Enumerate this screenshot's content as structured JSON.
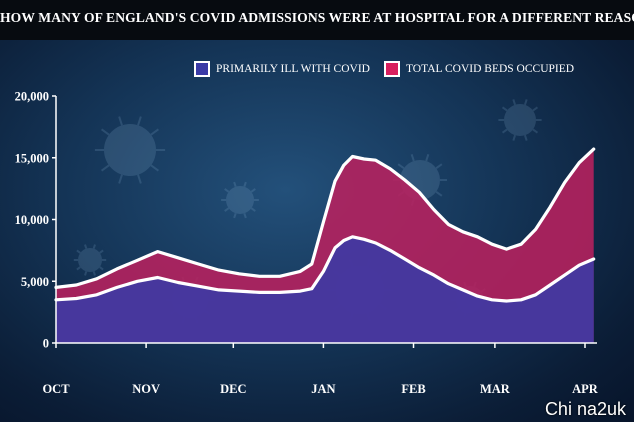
{
  "title": "HOW MANY OF ENGLAND'S COVID ADMISSIONS WERE AT HOSPITAL FOR A DIFFERENT REASON?",
  "watermark": "Chi na2uk",
  "colors": {
    "background": "#143456",
    "title_bar": "#070b10",
    "primarily_ill_fill": "#3a3aa6",
    "total_fill": "#b8215e",
    "line": "#ffffff",
    "text": "#ffffff"
  },
  "legend": [
    {
      "label": "PRIMARILY ILL WITH COVID",
      "color": "#3a3aa6"
    },
    {
      "label": "TOTAL COVID BEDS OCCUPIED",
      "color": "#d81f5e"
    }
  ],
  "chart_data": {
    "type": "area",
    "title": "HOW MANY OF ENGLAND'S COVID ADMISSIONS WERE AT HOSPITAL FOR A DIFFERENT REASON?",
    "xlabel": "",
    "ylabel": "",
    "ylim": [
      0,
      20000
    ],
    "yticks": [
      "20,000",
      "15,000",
      "10,000",
      "5,000",
      "0"
    ],
    "yticks_values": [
      20000,
      15000,
      10000,
      5000,
      0
    ],
    "xticks": [
      "OCT",
      "NOV",
      "DEC",
      "JAN",
      "FEB",
      "MAR",
      "APR"
    ],
    "legend_position": "top-right",
    "grid": false,
    "x": [
      "2021-10-01",
      "2021-10-08",
      "2021-10-15",
      "2021-10-22",
      "2021-10-29",
      "2021-11-05",
      "2021-11-12",
      "2021-11-19",
      "2021-11-26",
      "2021-12-03",
      "2021-12-10",
      "2021-12-17",
      "2021-12-24",
      "2021-12-28",
      "2022-01-01",
      "2022-01-05",
      "2022-01-08",
      "2022-01-11",
      "2022-01-15",
      "2022-01-19",
      "2022-01-24",
      "2022-01-29",
      "2022-02-03",
      "2022-02-08",
      "2022-02-13",
      "2022-02-18",
      "2022-02-23",
      "2022-02-28",
      "2022-03-05",
      "2022-03-10",
      "2022-03-15",
      "2022-03-20",
      "2022-03-25",
      "2022-03-30",
      "2022-04-04"
    ],
    "series": [
      {
        "name": "TOTAL COVID BEDS OCCUPIED",
        "values": [
          4500,
          4700,
          5200,
          6000,
          6700,
          7400,
          6900,
          6400,
          5900,
          5600,
          5400,
          5400,
          5800,
          6400,
          9800,
          13100,
          14400,
          15100,
          14900,
          14800,
          14100,
          13200,
          12200,
          10800,
          9600,
          9000,
          8600,
          8000,
          7600,
          8000,
          9200,
          11000,
          13000,
          14600,
          15700
        ]
      },
      {
        "name": "PRIMARILY ILL WITH COVID",
        "values": [
          3500,
          3600,
          3900,
          4500,
          5000,
          5300,
          4900,
          4600,
          4300,
          4200,
          4100,
          4100,
          4200,
          4400,
          5800,
          7700,
          8300,
          8600,
          8400,
          8100,
          7500,
          6800,
          6100,
          5500,
          4800,
          4300,
          3800,
          3500,
          3400,
          3500,
          3900,
          4700,
          5500,
          6300,
          6800
        ]
      }
    ]
  }
}
